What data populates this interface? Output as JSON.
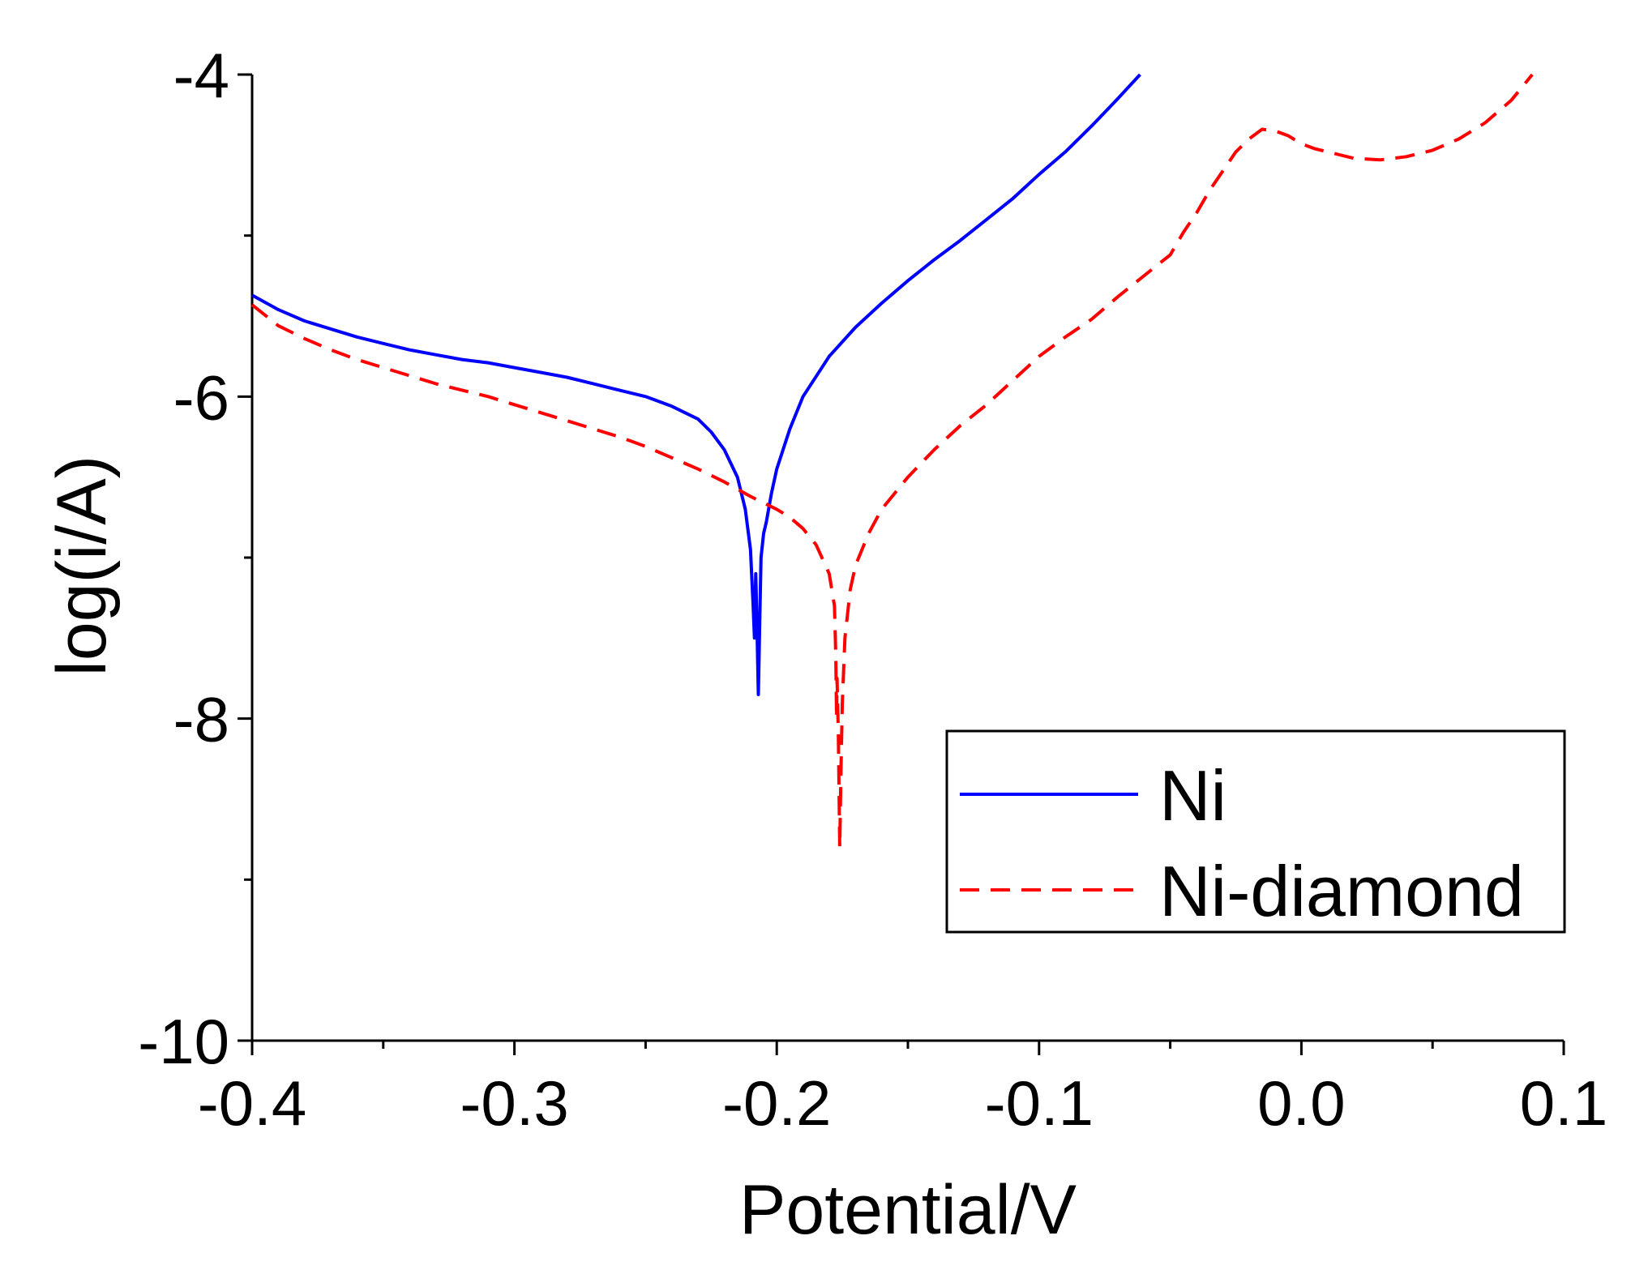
{
  "chart_data": {
    "type": "line",
    "title": "",
    "xlabel": "Potential/V",
    "ylabel": "log(i/A)",
    "xlim": [
      -0.4,
      0.1
    ],
    "ylim": [
      -10,
      -4
    ],
    "x_ticks": [
      -0.4,
      -0.3,
      -0.2,
      -0.1,
      0.0,
      0.1
    ],
    "x_tick_labels": [
      "-0.4",
      "-0.3",
      "-0.2",
      "-0.1",
      "0.0",
      "0.1"
    ],
    "x_minor_ticks": [
      -0.35,
      -0.25,
      -0.15,
      -0.05,
      0.05
    ],
    "y_ticks": [
      -4,
      -6,
      -8,
      -10
    ],
    "y_tick_labels": [
      "-4",
      "-6",
      "-8",
      "-10"
    ],
    "y_minor_ticks": [
      -5,
      -7,
      -9
    ],
    "grid": false,
    "legend_position": "bottom-right",
    "series": [
      {
        "name": "Ni",
        "color": "#0000ff",
        "style": "solid",
        "points": [
          [
            -0.4,
            -5.37
          ],
          [
            -0.39,
            -5.46
          ],
          [
            -0.38,
            -5.53
          ],
          [
            -0.37,
            -5.58
          ],
          [
            -0.36,
            -5.63
          ],
          [
            -0.35,
            -5.67
          ],
          [
            -0.34,
            -5.71
          ],
          [
            -0.33,
            -5.74
          ],
          [
            -0.32,
            -5.77
          ],
          [
            -0.31,
            -5.79
          ],
          [
            -0.3,
            -5.82
          ],
          [
            -0.29,
            -5.85
          ],
          [
            -0.28,
            -5.88
          ],
          [
            -0.27,
            -5.92
          ],
          [
            -0.26,
            -5.96
          ],
          [
            -0.25,
            -6.0
          ],
          [
            -0.24,
            -6.06
          ],
          [
            -0.23,
            -6.14
          ],
          [
            -0.225,
            -6.22
          ],
          [
            -0.22,
            -6.33
          ],
          [
            -0.215,
            -6.5
          ],
          [
            -0.212,
            -6.7
          ],
          [
            -0.21,
            -6.95
          ],
          [
            -0.209,
            -7.3
          ],
          [
            -0.2085,
            -7.5
          ],
          [
            -0.208,
            -7.1
          ],
          [
            -0.2075,
            -7.45
          ],
          [
            -0.207,
            -7.85
          ],
          [
            -0.2065,
            -7.4
          ],
          [
            -0.206,
            -7.0
          ],
          [
            -0.205,
            -6.85
          ],
          [
            -0.204,
            -6.78
          ],
          [
            -0.202,
            -6.6
          ],
          [
            -0.2,
            -6.45
          ],
          [
            -0.195,
            -6.2
          ],
          [
            -0.19,
            -6.0
          ],
          [
            -0.18,
            -5.75
          ],
          [
            -0.17,
            -5.57
          ],
          [
            -0.16,
            -5.42
          ],
          [
            -0.15,
            -5.28
          ],
          [
            -0.14,
            -5.15
          ],
          [
            -0.13,
            -5.03
          ],
          [
            -0.12,
            -4.9
          ],
          [
            -0.11,
            -4.77
          ],
          [
            -0.1,
            -4.62
          ],
          [
            -0.09,
            -4.48
          ],
          [
            -0.08,
            -4.32
          ],
          [
            -0.07,
            -4.15
          ],
          [
            -0.0615,
            -4.0
          ]
        ]
      },
      {
        "name": "Ni-diamond",
        "color": "#ff0000",
        "style": "dashed",
        "points": [
          [
            -0.4,
            -5.43
          ],
          [
            -0.39,
            -5.56
          ],
          [
            -0.38,
            -5.64
          ],
          [
            -0.37,
            -5.71
          ],
          [
            -0.36,
            -5.77
          ],
          [
            -0.35,
            -5.82
          ],
          [
            -0.34,
            -5.87
          ],
          [
            -0.33,
            -5.92
          ],
          [
            -0.32,
            -5.96
          ],
          [
            -0.31,
            -6.0
          ],
          [
            -0.3,
            -6.05
          ],
          [
            -0.29,
            -6.1
          ],
          [
            -0.28,
            -6.15
          ],
          [
            -0.27,
            -6.2
          ],
          [
            -0.26,
            -6.25
          ],
          [
            -0.25,
            -6.31
          ],
          [
            -0.24,
            -6.38
          ],
          [
            -0.23,
            -6.45
          ],
          [
            -0.22,
            -6.53
          ],
          [
            -0.21,
            -6.62
          ],
          [
            -0.2,
            -6.7
          ],
          [
            -0.195,
            -6.75
          ],
          [
            -0.19,
            -6.82
          ],
          [
            -0.185,
            -6.92
          ],
          [
            -0.18,
            -7.1
          ],
          [
            -0.178,
            -7.3
          ],
          [
            -0.1775,
            -7.6
          ],
          [
            -0.1772,
            -8.0
          ],
          [
            -0.177,
            -7.75
          ],
          [
            -0.1765,
            -8.1
          ],
          [
            -0.176,
            -8.8
          ],
          [
            -0.1755,
            -8.3
          ],
          [
            -0.175,
            -7.9
          ],
          [
            -0.174,
            -7.5
          ],
          [
            -0.172,
            -7.2
          ],
          [
            -0.17,
            -7.05
          ],
          [
            -0.165,
            -6.85
          ],
          [
            -0.16,
            -6.7
          ],
          [
            -0.15,
            -6.5
          ],
          [
            -0.14,
            -6.33
          ],
          [
            -0.13,
            -6.18
          ],
          [
            -0.12,
            -6.05
          ],
          [
            -0.11,
            -5.9
          ],
          [
            -0.1,
            -5.75
          ],
          [
            -0.09,
            -5.63
          ],
          [
            -0.08,
            -5.52
          ],
          [
            -0.07,
            -5.38
          ],
          [
            -0.06,
            -5.25
          ],
          [
            -0.05,
            -5.12
          ],
          [
            -0.045,
            -4.98
          ],
          [
            -0.04,
            -4.86
          ],
          [
            -0.035,
            -4.72
          ],
          [
            -0.03,
            -4.6
          ],
          [
            -0.025,
            -4.48
          ],
          [
            -0.02,
            -4.4
          ],
          [
            -0.015,
            -4.34
          ],
          [
            -0.01,
            -4.35
          ],
          [
            -0.005,
            -4.38
          ],
          [
            0.0,
            -4.43
          ],
          [
            0.005,
            -4.46
          ],
          [
            0.01,
            -4.48
          ],
          [
            0.02,
            -4.52
          ],
          [
            0.03,
            -4.53
          ],
          [
            0.04,
            -4.51
          ],
          [
            0.05,
            -4.47
          ],
          [
            0.06,
            -4.4
          ],
          [
            0.07,
            -4.3
          ],
          [
            0.08,
            -4.16
          ],
          [
            0.088,
            -4.0
          ]
        ]
      }
    ]
  }
}
